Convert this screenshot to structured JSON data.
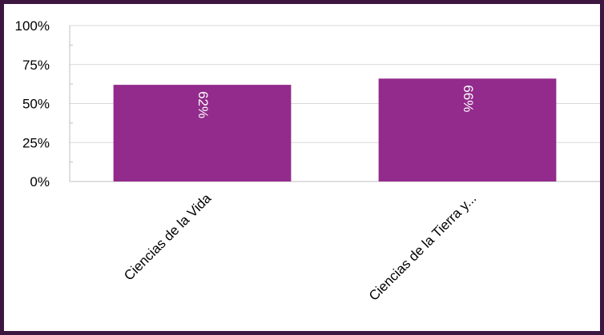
{
  "chart_data": {
    "type": "bar",
    "categories": [
      "Ciencias de la Vida",
      "Ciencias de la Tierra y..."
    ],
    "values": [
      62,
      66
    ],
    "data_labels": [
      "62%",
      "66%"
    ],
    "yticks": [
      "0%",
      "25%",
      "50%",
      "75%",
      "100%"
    ],
    "ylim": [
      0,
      100
    ],
    "title": "",
    "xlabel": "",
    "ylabel": "",
    "grid": true,
    "legend": "none",
    "colors": {
      "bar": "#922b8c",
      "frame": "#3d1740",
      "grid": "#d9d9d9",
      "axis": "#bfbfbf",
      "text": "#000000",
      "label_text": "#ffffff"
    }
  }
}
